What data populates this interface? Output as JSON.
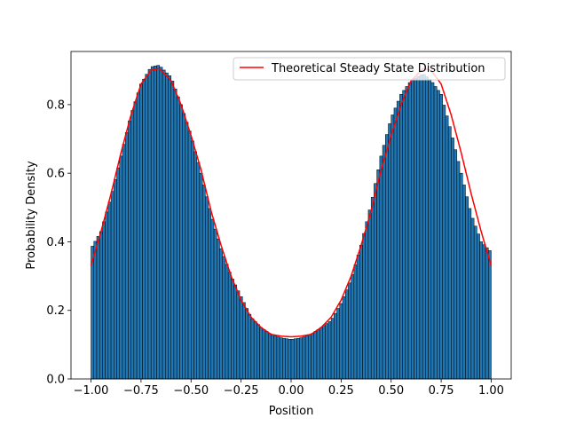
{
  "chart_data": {
    "type": "bar",
    "xlabel": "Position",
    "ylabel": "Probability Density",
    "xlim": [
      -1.1,
      1.1
    ],
    "ylim": [
      0.0,
      0.955
    ],
    "xticks": [
      -1.0,
      -0.75,
      -0.5,
      -0.25,
      0.0,
      0.25,
      0.5,
      0.75,
      1.0
    ],
    "xtick_labels": [
      "−1.00",
      "−0.75",
      "−0.50",
      "−0.25",
      "0.00",
      "0.25",
      "0.50",
      "0.75",
      "1.00"
    ],
    "yticks": [
      0.0,
      0.2,
      0.4,
      0.6,
      0.8
    ],
    "ytick_labels": [
      "0.0",
      "0.2",
      "0.4",
      "0.6",
      "0.8"
    ],
    "grid": false,
    "legend": {
      "location": "top-right",
      "entries": [
        "Theoretical Steady State Distribution"
      ]
    },
    "histogram": {
      "bin_range": [
        -1.0,
        1.0
      ],
      "bin_count": 140,
      "profile_x": [
        -1.0,
        -0.95,
        -0.9,
        -0.85,
        -0.8,
        -0.75,
        -0.7,
        -0.66,
        -0.6,
        -0.55,
        -0.5,
        -0.45,
        -0.4,
        -0.35,
        -0.3,
        -0.25,
        -0.2,
        -0.15,
        -0.1,
        -0.05,
        0.0,
        0.05,
        0.1,
        0.15,
        0.2,
        0.25,
        0.3,
        0.35,
        0.4,
        0.45,
        0.5,
        0.55,
        0.6,
        0.66,
        0.7,
        0.75,
        0.8,
        0.85,
        0.9,
        0.95,
        1.0
      ],
      "profile_y": [
        0.38,
        0.43,
        0.53,
        0.65,
        0.77,
        0.86,
        0.91,
        0.915,
        0.88,
        0.8,
        0.71,
        0.6,
        0.48,
        0.38,
        0.3,
        0.24,
        0.18,
        0.15,
        0.13,
        0.12,
        0.115,
        0.12,
        0.13,
        0.15,
        0.17,
        0.22,
        0.29,
        0.39,
        0.51,
        0.65,
        0.76,
        0.83,
        0.87,
        0.89,
        0.87,
        0.83,
        0.72,
        0.6,
        0.48,
        0.4,
        0.37
      ],
      "color": "#1f77b4",
      "edgecolor": "#000000"
    },
    "series": [
      {
        "name": "Theoretical Steady State Distribution",
        "color": "#ff0000",
        "x": [
          -1.0,
          -0.95,
          -0.9,
          -0.85,
          -0.8,
          -0.75,
          -0.7,
          -0.66,
          -0.6,
          -0.55,
          -0.5,
          -0.45,
          -0.4,
          -0.35,
          -0.3,
          -0.25,
          -0.2,
          -0.15,
          -0.1,
          -0.05,
          0.0,
          0.05,
          0.1,
          0.15,
          0.2,
          0.25,
          0.3,
          0.35,
          0.4,
          0.45,
          0.5,
          0.55,
          0.6,
          0.66,
          0.7,
          0.75,
          0.8,
          0.85,
          0.9,
          0.95,
          1.0
        ],
        "y": [
          0.33,
          0.43,
          0.54,
          0.66,
          0.77,
          0.86,
          0.9,
          0.905,
          0.87,
          0.8,
          0.71,
          0.61,
          0.49,
          0.39,
          0.3,
          0.23,
          0.18,
          0.15,
          0.13,
          0.125,
          0.123,
          0.125,
          0.13,
          0.15,
          0.18,
          0.23,
          0.3,
          0.39,
          0.49,
          0.61,
          0.71,
          0.8,
          0.87,
          0.905,
          0.9,
          0.86,
          0.77,
          0.66,
          0.54,
          0.43,
          0.33
        ]
      }
    ]
  }
}
